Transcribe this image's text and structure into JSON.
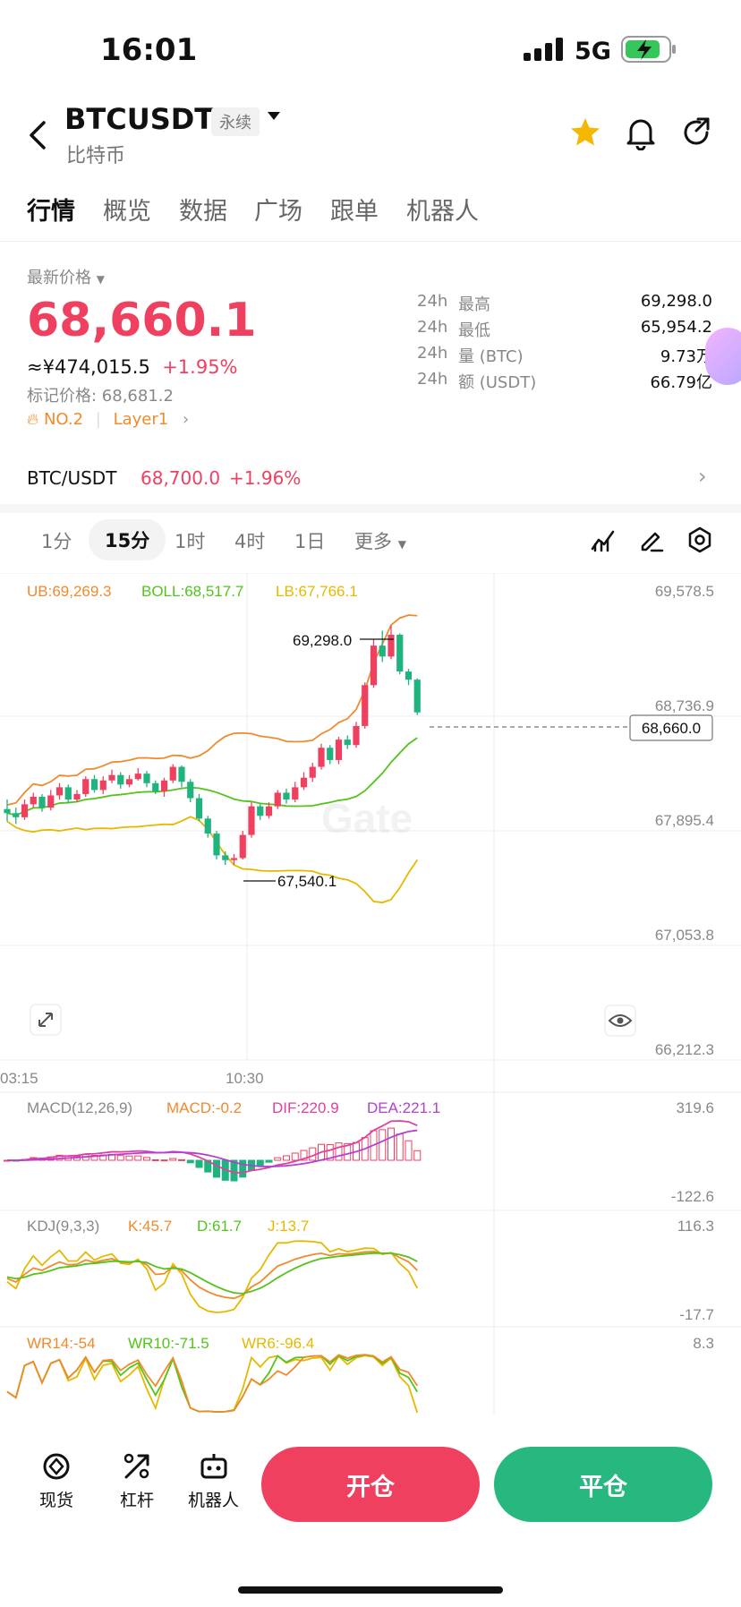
{
  "status_bar": {
    "time": "16:01",
    "network": "5G"
  },
  "header": {
    "symbol": "BTCUSDT",
    "badge": "永续",
    "subtitle": "比特币"
  },
  "tabs": [
    "行情",
    "概览",
    "数据",
    "广场",
    "跟单",
    "机器人"
  ],
  "price": {
    "label": "最新价格",
    "last": "68,660.1",
    "cny": "≈¥474,015.5",
    "change": "+1.95%",
    "mark_label": "标记价格: 68,681.2",
    "rank": "NO.2",
    "category": "Layer1"
  },
  "stats": [
    {
      "k1": "24h",
      "k2": "最高",
      "v": "69,298.0"
    },
    {
      "k1": "24h",
      "k2": "最低",
      "v": "65,954.2"
    },
    {
      "k1": "24h",
      "k2": "量 (BTC)",
      "v": "9.73万"
    },
    {
      "k1": "24h",
      "k2": "额 (USDT)",
      "v": "66.79亿"
    }
  ],
  "spot_pair": {
    "name": "BTC/USDT",
    "price": "68,700.0",
    "change": "+1.96%"
  },
  "timeframes": [
    "1分",
    "15分",
    "1时",
    "4时",
    "1日",
    "更多"
  ],
  "active_timeframe": "15分",
  "colors": {
    "up": "#f0405f",
    "down": "#1fb37e",
    "brand_up": "#f0405f",
    "brand_down": "#27b87f"
  },
  "chart_data": {
    "type": "candlestick",
    "boll": {
      "ub_label": "UB:69,269.3",
      "boll_label": "BOLL:68,517.7",
      "lb_label": "LB:67,766.1"
    },
    "y_ticks": [
      "69,578.5",
      "68,736.9",
      "67,895.4",
      "67,053.8",
      "66,212.3"
    ],
    "x_ticks": [
      "03:15",
      "10:30"
    ],
    "high_marker": "69,298.0",
    "low_marker": "67,540.1",
    "current_price": "68,660.0",
    "ylim": [
      66212.3,
      69578.5
    ],
    "candles": [
      [
        67950,
        67920,
        68020,
        67860
      ],
      [
        67920,
        67890,
        67960,
        67840
      ],
      [
        67890,
        67985,
        68020,
        67870
      ],
      [
        67985,
        68040,
        68070,
        67960
      ],
      [
        68040,
        67960,
        68060,
        67930
      ],
      [
        67960,
        68050,
        68090,
        67940
      ],
      [
        68050,
        68110,
        68140,
        68020
      ],
      [
        68110,
        68020,
        68130,
        67990
      ],
      [
        68020,
        68060,
        68090,
        68000
      ],
      [
        68060,
        68170,
        68190,
        68040
      ],
      [
        68170,
        68090,
        68200,
        68070
      ],
      [
        68090,
        68160,
        68190,
        68060
      ],
      [
        68160,
        68200,
        68240,
        68140
      ],
      [
        68200,
        68130,
        68220,
        68100
      ],
      [
        68130,
        68170,
        68200,
        68110
      ],
      [
        68170,
        68210,
        68250,
        68160
      ],
      [
        68210,
        68140,
        68230,
        68110
      ],
      [
        68140,
        68080,
        68160,
        68060
      ],
      [
        68080,
        68160,
        68180,
        68040
      ],
      [
        68160,
        68260,
        68280,
        68140
      ],
      [
        68260,
        68150,
        68270,
        68110
      ],
      [
        68150,
        68030,
        68170,
        68000
      ],
      [
        68030,
        67880,
        68060,
        67860
      ],
      [
        67880,
        67770,
        67900,
        67740
      ],
      [
        67770,
        67610,
        67790,
        67580
      ],
      [
        67610,
        67575,
        67640,
        67540
      ],
      [
        67575,
        67590,
        67620,
        67540
      ],
      [
        67590,
        67760,
        67790,
        67580
      ],
      [
        67760,
        67970,
        68000,
        67740
      ],
      [
        67970,
        67900,
        67990,
        67870
      ],
      [
        67900,
        67970,
        68000,
        67880
      ],
      [
        67970,
        68070,
        68090,
        67950
      ],
      [
        68070,
        68020,
        68100,
        67990
      ],
      [
        68020,
        68110,
        68150,
        68000
      ],
      [
        68110,
        68180,
        68220,
        68090
      ],
      [
        68180,
        68260,
        68290,
        68150
      ],
      [
        68260,
        68400,
        68430,
        68240
      ],
      [
        68400,
        68310,
        68420,
        68280
      ],
      [
        68310,
        68460,
        68480,
        68280
      ],
      [
        68460,
        68420,
        68490,
        68390
      ],
      [
        68420,
        68560,
        68590,
        68400
      ],
      [
        68560,
        68860,
        68880,
        68540
      ],
      [
        68860,
        69150,
        69200,
        68840
      ],
      [
        69150,
        69070,
        69260,
        69030
      ],
      [
        69070,
        69230,
        69298,
        69050
      ],
      [
        69230,
        68960,
        69240,
        68940
      ],
      [
        68960,
        68900,
        68980,
        68860
      ],
      [
        68900,
        68660,
        68910,
        68640
      ]
    ],
    "macd": {
      "params": "MACD(12,26,9)",
      "macd_label": "MACD:-0.2",
      "dif_label": "DIF:220.9",
      "dea_label": "DEA:221.1",
      "y_top": "319.6",
      "y_bottom": "-122.6"
    },
    "kdj": {
      "params": "KDJ(9,3,3)",
      "k_label": "K:45.7",
      "d_label": "D:61.7",
      "j_label": "J:13.7",
      "y_top": "116.3",
      "y_bottom": "-17.7"
    },
    "wr": {
      "wr14_label": "WR14:-54",
      "wr10_label": "WR10:-71.5",
      "wr6_label": "WR6:-96.4",
      "y_top": "8.3"
    }
  },
  "bottom_nav": [
    {
      "label": "现货",
      "icon": "spot-icon"
    },
    {
      "label": "杠杆",
      "icon": "leverage-icon"
    },
    {
      "label": "机器人",
      "icon": "robot-icon"
    }
  ],
  "actions": {
    "open": "开仓",
    "close": "平仓"
  }
}
